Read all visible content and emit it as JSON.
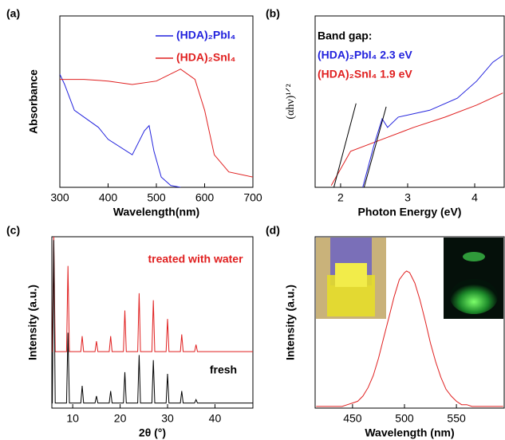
{
  "chart_data": [
    {
      "type": "line",
      "panel_label": "(a)",
      "xlabel": "Wavelength(nm)",
      "ylabel": "Absorbance",
      "xlim": [
        300,
        700
      ],
      "xticks": [
        300,
        400,
        500,
        600,
        700
      ],
      "ylim": [
        0,
        1
      ],
      "legend": "upper right",
      "series": [
        {
          "name": "(HDA)₂PbI₄",
          "color": "#2222dd",
          "x": [
            300,
            310,
            330,
            380,
            400,
            450,
            475,
            485,
            495,
            510,
            530,
            550
          ],
          "values": [
            0.66,
            0.6,
            0.45,
            0.35,
            0.28,
            0.19,
            0.33,
            0.36,
            0.21,
            0.06,
            0.01,
            0
          ]
        },
        {
          "name": "(HDA)₂SnI₄",
          "color": "#e02020",
          "x": [
            300,
            350,
            400,
            450,
            500,
            550,
            580,
            600,
            620,
            650,
            700
          ],
          "values": [
            0.63,
            0.63,
            0.62,
            0.6,
            0.62,
            0.69,
            0.63,
            0.45,
            0.19,
            0.09,
            0.06
          ]
        }
      ]
    },
    {
      "type": "line",
      "panel_label": "(b)",
      "xlabel": "Photon Energy (eV)",
      "ylabel": "(αhν)¹ᐟ²",
      "xlim": [
        1.62,
        4.44
      ],
      "xticks": [
        2,
        3,
        4
      ],
      "ylim": [
        0,
        1
      ],
      "annotations": [
        {
          "text": "Band gap:",
          "color": "#000000"
        },
        {
          "text": "(HDA)₂PbI₄ 2.3 eV",
          "color": "#2222dd"
        },
        {
          "text": "(HDA)₂SnI₄ 1.9 eV",
          "color": "#e02020"
        }
      ],
      "series": [
        {
          "color": "#e02020",
          "x": [
            1.86,
            2.15,
            2.62,
            3.09,
            3.56,
            4.03,
            4.42
          ],
          "values": [
            0.01,
            0.21,
            0.28,
            0.35,
            0.41,
            0.48,
            0.55
          ]
        },
        {
          "color": "#2222dd",
          "x": [
            2.33,
            2.5,
            2.62,
            2.7,
            2.86,
            3.33,
            3.74,
            4.03,
            4.27,
            4.42
          ],
          "values": [
            0,
            0.25,
            0.4,
            0.35,
            0.41,
            0.45,
            0.52,
            0.62,
            0.73,
            0.77
          ]
        },
        {
          "color": "#000000",
          "x": [
            1.9,
            2.23
          ],
          "values": [
            0,
            0.49
          ]
        },
        {
          "color": "#000000",
          "x": [
            2.35,
            2.68
          ],
          "values": [
            0,
            0.47
          ]
        }
      ]
    },
    {
      "type": "line",
      "panel_label": "(c)",
      "xlabel": "2θ (°)",
      "ylabel": "Intensity (a.u.)",
      "xlim": [
        5.6,
        48
      ],
      "xticks": [
        10,
        20,
        30,
        40
      ],
      "ylim": [
        0,
        1
      ],
      "annotations": [
        {
          "text": "treated with water",
          "color": "#e02020"
        },
        {
          "text": "fresh",
          "color": "#000000"
        }
      ],
      "series": [
        {
          "color": "#e02020",
          "x": [
            5.6,
            5.7,
            6.0,
            6.3,
            8.7,
            9.0,
            9.3,
            11.7,
            12.0,
            12.3,
            14.7,
            15.0,
            15.3,
            17.7,
            18.0,
            18.3,
            20.7,
            21.0,
            21.3,
            23.7,
            24.0,
            24.3,
            26.7,
            27.0,
            27.3,
            29.7,
            30.0,
            30.3,
            32.7,
            33.0,
            33.3,
            35.7,
            36.0,
            36.3,
            48
          ],
          "values": [
            0.33,
            0.33,
            1.0,
            0.33,
            0.33,
            0.83,
            0.33,
            0.33,
            0.42,
            0.33,
            0.33,
            0.39,
            0.33,
            0.33,
            0.42,
            0.33,
            0.33,
            0.57,
            0.33,
            0.33,
            0.67,
            0.33,
            0.33,
            0.63,
            0.33,
            0.33,
            0.52,
            0.33,
            0.33,
            0.43,
            0.33,
            0.33,
            0.37,
            0.33,
            0.33
          ]
        },
        {
          "color": "#000000",
          "x": [
            5.6,
            5.7,
            6.0,
            6.3,
            8.7,
            9.0,
            9.3,
            11.7,
            12.0,
            12.3,
            14.7,
            15.0,
            15.3,
            17.7,
            18.0,
            18.3,
            20.7,
            21.0,
            21.3,
            23.7,
            24.0,
            24.3,
            26.7,
            27.0,
            27.3,
            29.7,
            30.0,
            30.3,
            32.7,
            33.0,
            33.3,
            35.7,
            36.0,
            36.3,
            48
          ],
          "values": [
            0.03,
            0.03,
            0.98,
            0.03,
            0.03,
            0.44,
            0.03,
            0.03,
            0.13,
            0.03,
            0.03,
            0.07,
            0.03,
            0.03,
            0.1,
            0.03,
            0.03,
            0.21,
            0.03,
            0.03,
            0.31,
            0.03,
            0.03,
            0.28,
            0.03,
            0.03,
            0.2,
            0.03,
            0.03,
            0.1,
            0.03,
            0.03,
            0.05,
            0.03,
            0.03
          ]
        }
      ]
    },
    {
      "type": "line",
      "panel_label": "(d)",
      "xlabel": "Wavelength (nm)",
      "ylabel": "Intensity (a.u.)",
      "xlim": [
        414,
        596
      ],
      "xticks": [
        450,
        500,
        550
      ],
      "ylim": [
        0,
        1
      ],
      "series": [
        {
          "color": "#e02020",
          "x": [
            415,
            420,
            425,
            430,
            435,
            440,
            445,
            450,
            455,
            460,
            465,
            470,
            475,
            480,
            485,
            490,
            495,
            500,
            502,
            505,
            510,
            515,
            520,
            525,
            530,
            535,
            540,
            545,
            550,
            555,
            560,
            565,
            570,
            575,
            580,
            585,
            590,
            595
          ],
          "values": [
            0.01,
            0.01,
            0.01,
            0.01,
            0.01,
            0.01,
            0.02,
            0.03,
            0.04,
            0.07,
            0.12,
            0.19,
            0.29,
            0.41,
            0.53,
            0.65,
            0.75,
            0.79,
            0.8,
            0.79,
            0.73,
            0.63,
            0.51,
            0.38,
            0.27,
            0.18,
            0.11,
            0.07,
            0.04,
            0.02,
            0.02,
            0.01,
            0.01,
            0.01,
            0.01,
            0.01,
            0.01,
            0.01
          ]
        }
      ]
    }
  ]
}
